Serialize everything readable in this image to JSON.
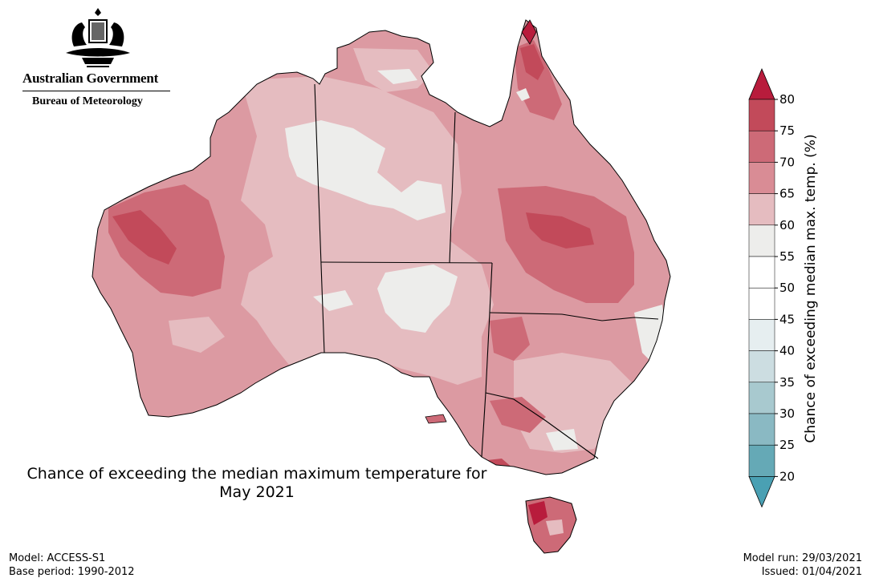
{
  "header": {
    "government": "Australian Government",
    "bureau": "Bureau of Meteorology"
  },
  "title_line1": "Chance of exceeding the median maximum temperature for",
  "title_line2": "May 2021",
  "footer": {
    "model": "Model: ACCESS-S1",
    "base_period": "Base period: 1990-2012",
    "model_run": "Model run: 29/03/2021",
    "issued": "Issued: 01/04/2021"
  },
  "colorbar": {
    "label": "Chance of exceeding median max. temp. (%)",
    "ticks": [
      "80",
      "75",
      "70",
      "65",
      "60",
      "55",
      "50",
      "45",
      "40",
      "35",
      "30",
      "25",
      "20"
    ],
    "bins": [
      {
        "range": "75-80",
        "color": "#c24a5a"
      },
      {
        "range": "70-75",
        "color": "#cd6a77"
      },
      {
        "range": "65-70",
        "color": "#d98c95"
      },
      {
        "range": "60-65",
        "color": "#e5bcc0"
      },
      {
        "range": "55-60",
        "color": "#ededeb"
      },
      {
        "range": "50-55",
        "color": "#ffffff"
      },
      {
        "range": "45-50",
        "color": "#ffffff"
      },
      {
        "range": "40-45",
        "color": "#e6eef0"
      },
      {
        "range": "35-40",
        "color": "#ccdde1"
      },
      {
        "range": "30-35",
        "color": "#a8c9cf"
      },
      {
        "range": "25-30",
        "color": "#8ab9c3"
      },
      {
        "range": "20-25",
        "color": "#65a9b6"
      }
    ],
    "extend_high_color": "#b81c3c",
    "extend_low_color": "#4aa0b3"
  },
  "map_colors": {
    "land_base": "#dc9aa2",
    "light": "#e5bcc0",
    "near_median": "#ededeb",
    "medium": "#cd6a77",
    "high": "#c24a5a",
    "very_high": "#b81c3c",
    "border": "#000000"
  }
}
